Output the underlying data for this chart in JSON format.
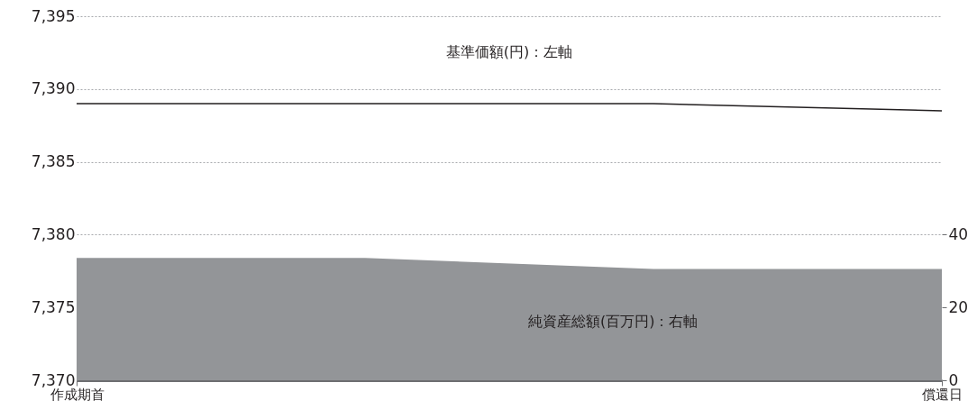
{
  "chart_data": {
    "type": "line",
    "categories": [
      "作成期首",
      null,
      null,
      "償還日"
    ],
    "series": [
      {
        "name": "純資産総額(百万円)：右軸",
        "type": "area",
        "axis": "y2",
        "color": "#939598",
        "values": [
          33.6,
          33.6,
          30.6,
          30.6
        ]
      },
      {
        "name": "基準価額(円)：左軸",
        "color": "#231f20",
        "values": [
          7389,
          7389,
          7389,
          7388.5
        ]
      }
    ],
    "ylim": [
      7370,
      7395
    ],
    "yticks": [
      {
        "value": 7370,
        "label": "7,370"
      },
      {
        "value": 7375,
        "label": "7,375"
      },
      {
        "value": 7380,
        "label": "7,380"
      },
      {
        "value": 7385,
        "label": "7,385"
      },
      {
        "value": 7390,
        "label": "7,390"
      },
      {
        "value": 7395,
        "label": "7,395"
      }
    ],
    "y2lim": [
      0,
      100
    ],
    "y2ticks": [
      0,
      20,
      40
    ],
    "grid": "y",
    "legend": false,
    "marker": "none",
    "line_style": "solid"
  }
}
